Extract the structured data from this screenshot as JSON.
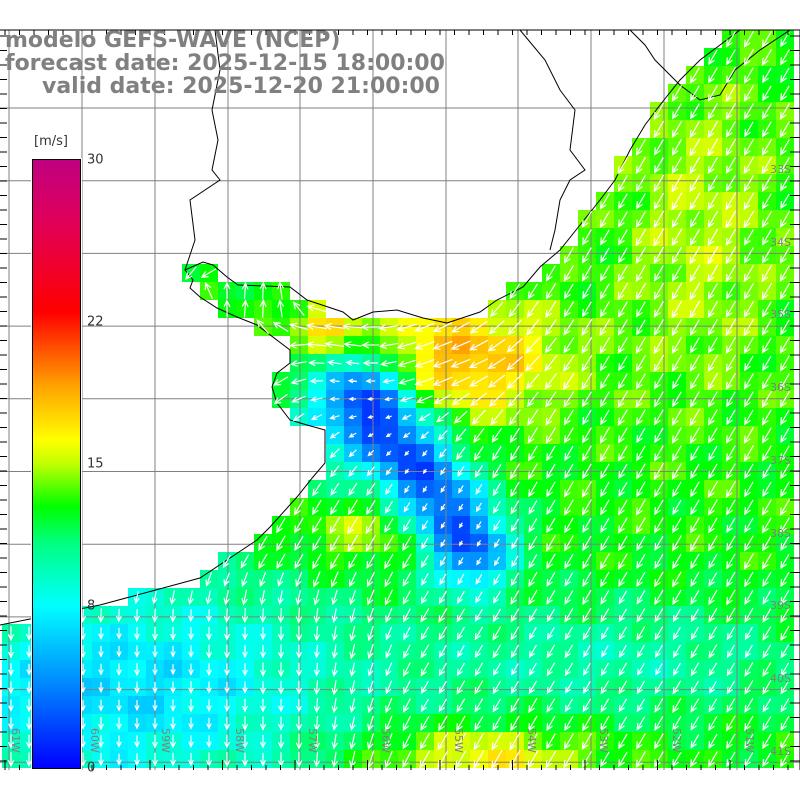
{
  "title": {
    "model": "modelo GEFS-WAVE (NCEP)",
    "forecast": "forecast date: 2025-12-15 18:00:00",
    "valid": "valid date: 2025-12-20 21:00:00"
  },
  "colorbar": {
    "unit": "[m/s]",
    "ticks": [
      "30",
      "22",
      "15",
      "8",
      "0"
    ],
    "min": 0,
    "max": 30
  },
  "axes": {
    "longitudes": [
      "61W",
      "60W",
      "59W",
      "58W",
      "57W",
      "56W",
      "55W",
      "54W",
      "53W",
      "52W",
      "51W"
    ],
    "latitudes": [
      "33S",
      "34S",
      "35S",
      "36S",
      "37S",
      "38S",
      "39S",
      "40S",
      "41S"
    ]
  },
  "colors": {
    "grid": "#808080",
    "coast": "#000000",
    "arrow": "#ffffff",
    "title": "#808080"
  }
}
